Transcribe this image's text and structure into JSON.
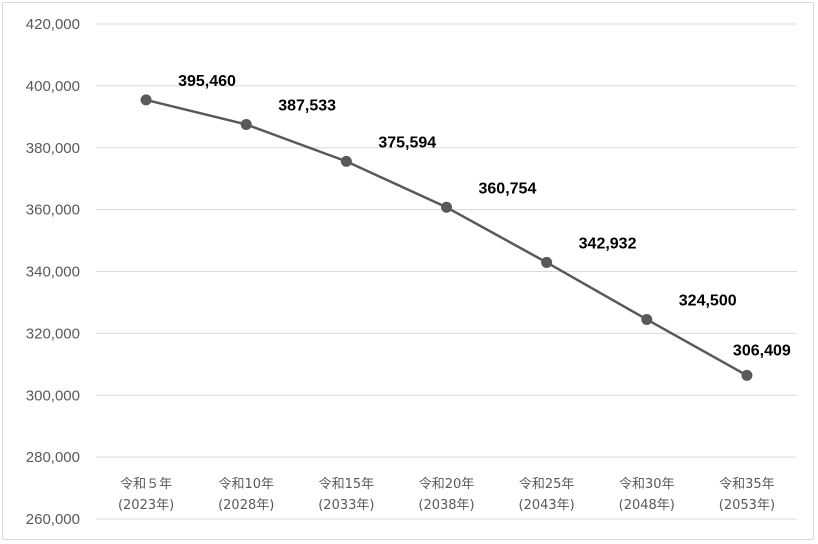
{
  "chart_data": {
    "type": "line",
    "categories": [
      [
        "令和５年",
        "(2023年)"
      ],
      [
        "令和10年",
        "(2028年)"
      ],
      [
        "令和15年",
        "(2033年)"
      ],
      [
        "令和20年",
        "(2038年)"
      ],
      [
        "令和25年",
        "(2043年)"
      ],
      [
        "令和30年",
        "(2048年)"
      ],
      [
        "令和35年",
        "(2053年)"
      ]
    ],
    "series": [
      {
        "values": [
          395460,
          387533,
          375594,
          360754,
          342932,
          324500,
          306409
        ],
        "data_labels": [
          "395,460",
          "387,533",
          "375,594",
          "360,754",
          "342,932",
          "324,500",
          "306,409"
        ]
      }
    ],
    "ylim": [
      260000,
      420000
    ],
    "yticks": [
      260000,
      280000,
      300000,
      320000,
      340000,
      360000,
      380000,
      400000,
      420000
    ],
    "ytick_labels": [
      "260,000",
      "280,000",
      "300,000",
      "320,000",
      "340,000",
      "360,000",
      "380,000",
      "400,000",
      "420,000"
    ],
    "grid": true,
    "legend": "none",
    "line_color": "#595959",
    "marker_color": "#595959",
    "grid_color": "#d9d9d9"
  }
}
